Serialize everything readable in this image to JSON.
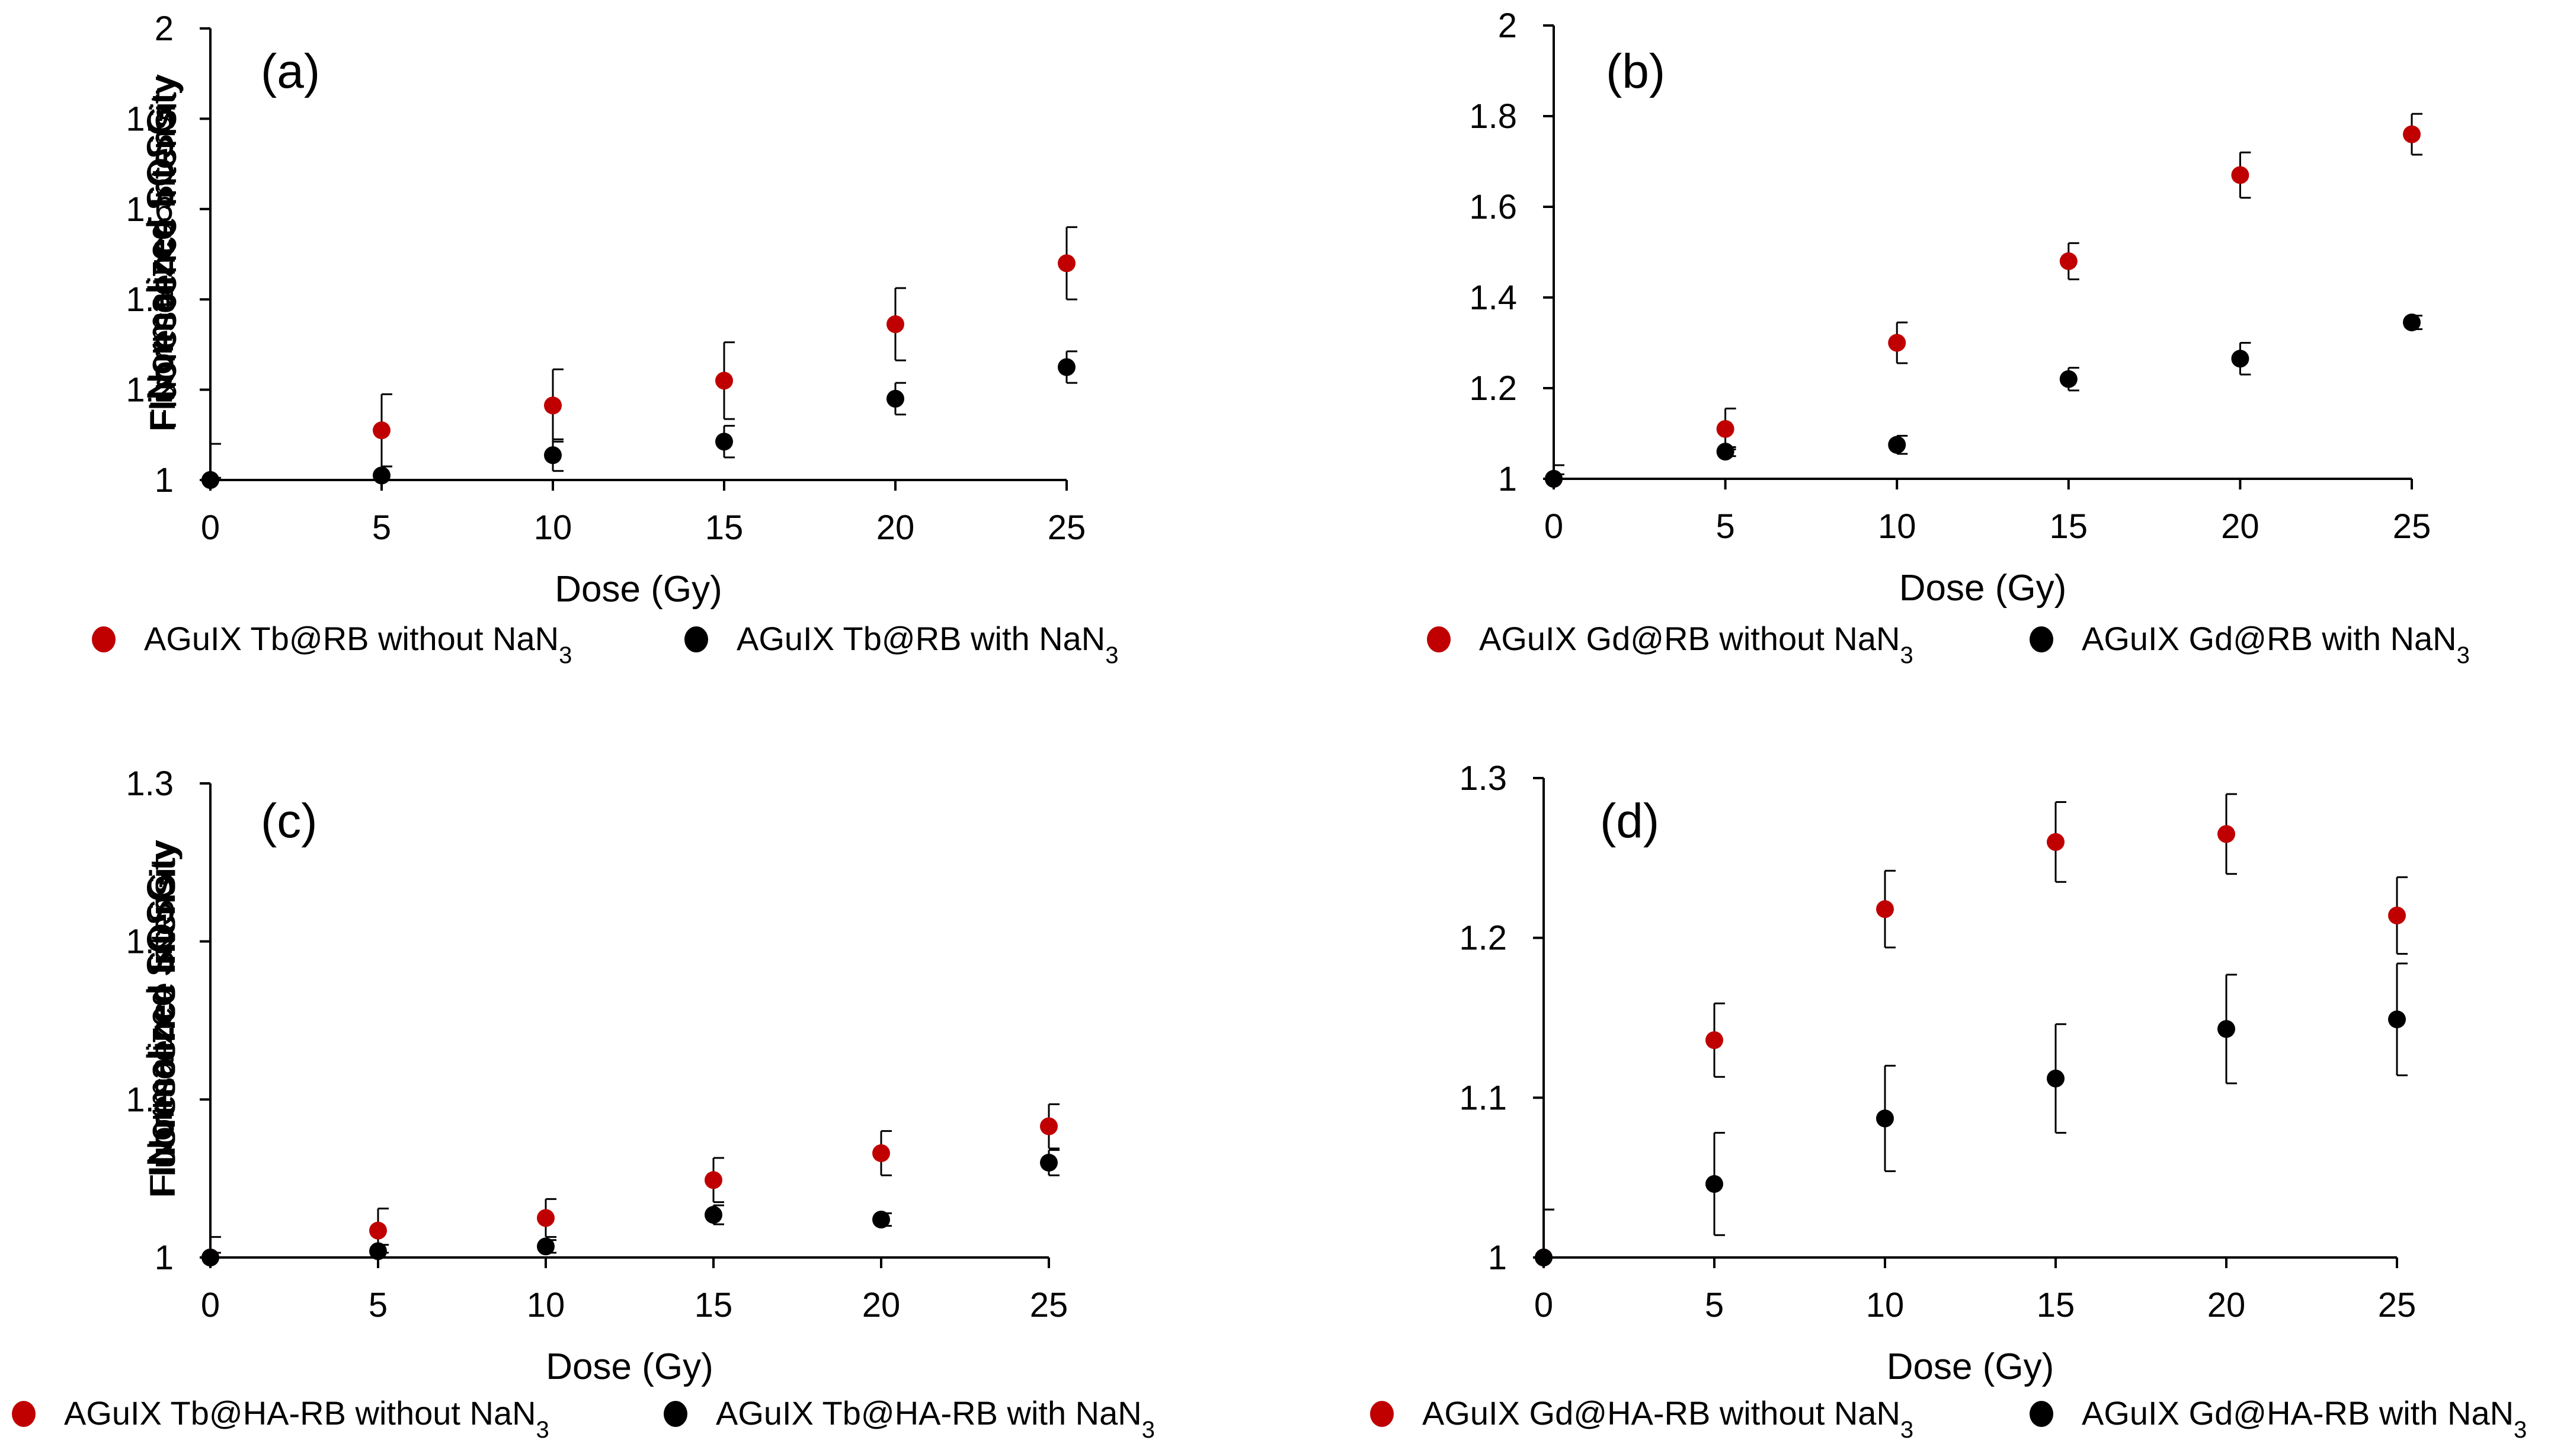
{
  "figure": {
    "xlabel": "Dose (Gy)",
    "ylabel_line1": "Normalized SOSG",
    "ylabel_line2": "Fluorescence Intensity"
  },
  "colors": {
    "without": "#c00000",
    "with": "#000000"
  },
  "chart_data": [
    {
      "type": "scatter",
      "panel_label": "(a)",
      "xlabel": "Dose (Gy)",
      "ylabel": "Normalized SOSG Fluorescence Intensity",
      "xlim": [
        0,
        25
      ],
      "ylim": [
        1,
        2
      ],
      "xticks": [
        "0",
        "5",
        "10",
        "15",
        "20",
        "25"
      ],
      "yticks": [
        "1",
        "1.2",
        "1.4",
        "1.6",
        "1.8",
        "2"
      ],
      "x": [
        0,
        5,
        10,
        15,
        20,
        25
      ],
      "series": [
        {
          "name": "AGuIX Tb@RB  without NaN3",
          "values": [
            1.0,
            1.11,
            1.165,
            1.22,
            1.345,
            1.48
          ],
          "errors": [
            0.08,
            0.08,
            0.08,
            0.085,
            0.08,
            0.08
          ]
        },
        {
          "name": "AGuIX Tb@RB  with NaN3",
          "values": [
            1.0,
            1.01,
            1.055,
            1.085,
            1.18,
            1.25
          ],
          "errors": [
            0.005,
            0.02,
            0.035,
            0.035,
            0.035,
            0.035
          ]
        }
      ],
      "legend": [
        {
          "pre": "AGuIX Tb@RB  without NaN",
          "sub": "3"
        },
        {
          "pre": "AGuIX Tb@RB  with NaN",
          "sub": "3"
        }
      ]
    },
    {
      "type": "scatter",
      "panel_label": "(b)",
      "xlabel": "Dose (Gy)",
      "ylabel": "Normalized SOSG Fluorescence Intensity",
      "xlim": [
        0,
        25
      ],
      "ylim": [
        1,
        2
      ],
      "xticks": [
        "0",
        "5",
        "10",
        "15",
        "20",
        "25"
      ],
      "yticks": [
        "1",
        "1.2",
        "1.4",
        "1.6",
        "1.8",
        "2"
      ],
      "x": [
        0,
        5,
        10,
        15,
        20,
        25
      ],
      "series": [
        {
          "name": "AGuIX Gd@RB  without NaN3",
          "values": [
            1.0,
            1.11,
            1.3,
            1.48,
            1.67,
            1.76
          ],
          "errors": [
            0.03,
            0.045,
            0.045,
            0.04,
            0.05,
            0.045
          ]
        },
        {
          "name": "AGuIX Gd@RB  with NaN3",
          "values": [
            1.0,
            1.06,
            1.075,
            1.22,
            1.265,
            1.345
          ],
          "errors": [
            0.01,
            0.01,
            0.02,
            0.025,
            0.035,
            0.015
          ]
        }
      ],
      "legend": [
        {
          "pre": "AGuIX Gd@RB  without NaN",
          "sub": "3"
        },
        {
          "pre": "AGuIX Gd@RB  with NaN",
          "sub": "3"
        }
      ]
    },
    {
      "type": "scatter",
      "panel_label": "(c)",
      "xlabel": "Dose (Gy)",
      "ylabel": "Normalized SOSG Fluorescence Intensity",
      "xlim": [
        0,
        25
      ],
      "ylim": [
        1,
        1.3
      ],
      "xticks": [
        "0",
        "5",
        "10",
        "15",
        "20",
        "25"
      ],
      "yticks": [
        "1",
        "1.1",
        "1.2",
        "1.3"
      ],
      "x": [
        0,
        5,
        10,
        15,
        20,
        25
      ],
      "series": [
        {
          "name": "AGuIX Tb@HA-RB  without NaN3",
          "values": [
            1.0,
            1.017,
            1.025,
            1.049,
            1.066,
            1.083
          ],
          "errors": [
            0.013,
            0.014,
            0.012,
            0.014,
            0.014,
            0.014
          ]
        },
        {
          "name": "AGuIX Tb@HA-RB  with NaN3",
          "values": [
            1.0,
            1.004,
            1.007,
            1.027,
            1.024,
            1.06
          ],
          "errors": [
            0.003,
            0.004,
            0.004,
            0.006,
            0.004,
            0.008
          ]
        }
      ],
      "legend": [
        {
          "pre": "AGuIX Tb@HA-RB  without NaN",
          "sub": "3"
        },
        {
          "pre": "AGuIX Tb@HA-RB  with NaN",
          "sub": "3"
        }
      ]
    },
    {
      "type": "scatter",
      "panel_label": "(d)",
      "xlabel": "Dose (Gy)",
      "ylabel": "Normalized SOSG Fluorescence Intensity",
      "xlim": [
        0,
        25
      ],
      "ylim": [
        1,
        1.3
      ],
      "xticks": [
        "0",
        "5",
        "10",
        "15",
        "20",
        "25"
      ],
      "yticks": [
        "1",
        "1.1",
        "1.2",
        "1.3"
      ],
      "x": [
        0,
        5,
        10,
        15,
        20,
        25
      ],
      "series": [
        {
          "name": "AGuIX Gd@HA-RB  without NaN3",
          "values": [
            1.0,
            1.136,
            1.218,
            1.26,
            1.265,
            1.214
          ],
          "errors": [
            0.03,
            0.023,
            0.024,
            0.025,
            0.025,
            0.024
          ]
        },
        {
          "name": "AGuIX Gd@HA-RB  with NaN3",
          "values": [
            1.0,
            1.046,
            1.087,
            1.112,
            1.143,
            1.149
          ],
          "errors": [
            0.03,
            0.032,
            0.033,
            0.034,
            0.034,
            0.035
          ]
        }
      ],
      "legend": [
        {
          "pre": "AGuIX Gd@HA-RB  without NaN",
          "sub": "3"
        },
        {
          "pre": "AGuIX Gd@HA-RB  with NaN",
          "sub": "3"
        }
      ]
    }
  ]
}
